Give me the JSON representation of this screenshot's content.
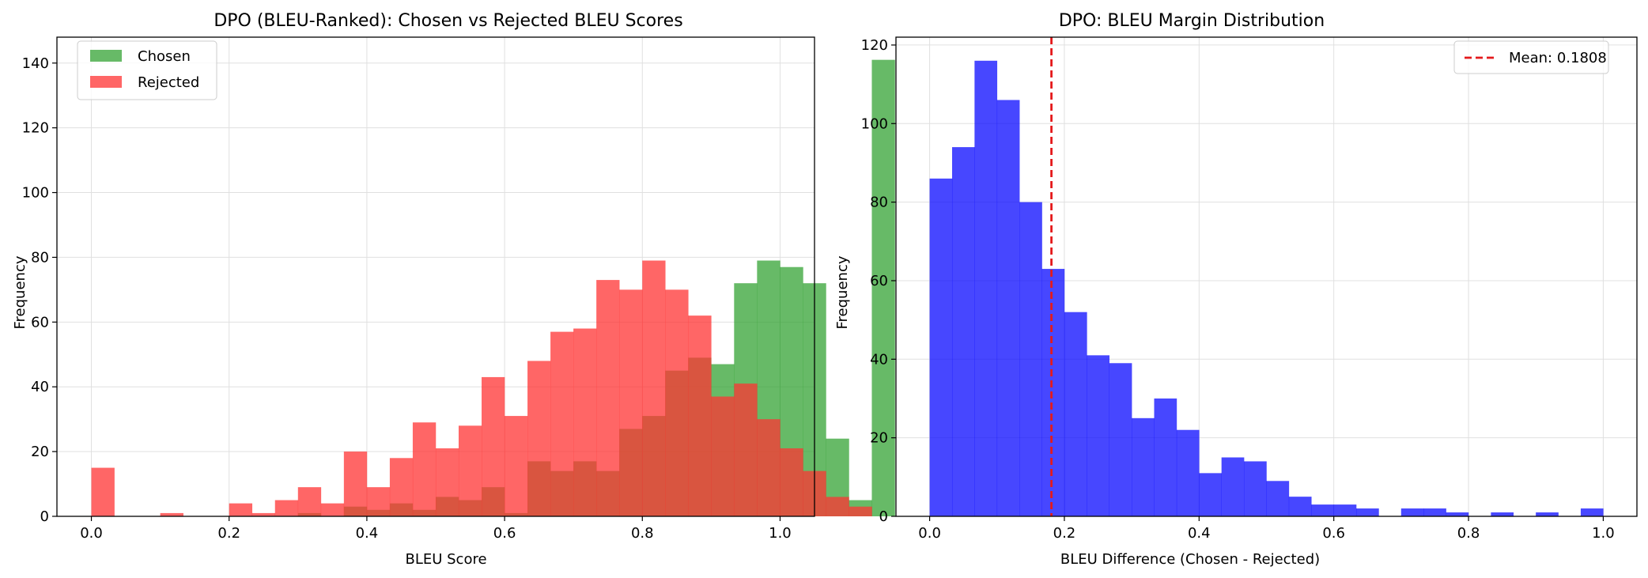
{
  "chart_data": [
    {
      "type": "bar",
      "title": "DPO (BLEU-Ranked): Chosen vs Rejected BLEU Scores",
      "xlabel": "BLEU Score",
      "ylabel": "Frequency",
      "xlim": [
        -0.05,
        1.05
      ],
      "ylim": [
        0,
        148
      ],
      "xticks": [
        0.0,
        0.2,
        0.4,
        0.6,
        0.8,
        1.0
      ],
      "xtick_labels": [
        "0.0",
        "0.2",
        "0.4",
        "0.6",
        "0.8",
        "1.0"
      ],
      "yticks": [
        0,
        20,
        40,
        60,
        80,
        100,
        120,
        140
      ],
      "ytick_labels": [
        "0",
        "20",
        "40",
        "60",
        "80",
        "100",
        "120",
        "140"
      ],
      "grid": true,
      "legend": "top-left",
      "bin_edges_start": 0.0,
      "bin_width": 0.03333,
      "series": [
        {
          "name": "Chosen",
          "color": "#2ca02c",
          "opacity": 0.72,
          "values": [
            0,
            0,
            0,
            0,
            0,
            0,
            0,
            0,
            0,
            1,
            0,
            3,
            2,
            4,
            2,
            6,
            5,
            9,
            1,
            17,
            14,
            17,
            14,
            27,
            31,
            45,
            49,
            47,
            72,
            79,
            77,
            72,
            24,
            5,
            141
          ]
        },
        {
          "name": "Rejected",
          "color": "#ff3333",
          "opacity": 0.75,
          "values": [
            15,
            0,
            0,
            1,
            0,
            0,
            4,
            1,
            5,
            9,
            4,
            20,
            9,
            18,
            29,
            21,
            28,
            43,
            31,
            48,
            57,
            58,
            73,
            70,
            79,
            70,
            62,
            37,
            41,
            30,
            21,
            14,
            6,
            3,
            0
          ]
        }
      ]
    },
    {
      "type": "bar",
      "title": "DPO: BLEU Margin Distribution",
      "xlabel": "BLEU Difference (Chosen - Rejected)",
      "ylabel": "Frequency",
      "xlim": [
        -0.05,
        1.05
      ],
      "ylim": [
        0,
        122
      ],
      "xticks": [
        0.0,
        0.2,
        0.4,
        0.6,
        0.8,
        1.0
      ],
      "xtick_labels": [
        "0.0",
        "0.2",
        "0.4",
        "0.6",
        "0.8",
        "1.0"
      ],
      "yticks": [
        0,
        20,
        40,
        60,
        80,
        100,
        120
      ],
      "ytick_labels": [
        "0",
        "20",
        "40",
        "60",
        "80",
        "100",
        "120"
      ],
      "grid": true,
      "legend": "top-right",
      "bin_edges_start": 0.0,
      "bin_width": 0.03333,
      "series": [
        {
          "color": "#0000ff",
          "opacity": 0.72,
          "values": [
            86,
            94,
            116,
            106,
            80,
            63,
            52,
            41,
            39,
            25,
            30,
            22,
            11,
            15,
            14,
            9,
            5,
            3,
            3,
            2,
            0,
            2,
            2,
            1,
            0,
            1,
            0,
            1,
            0,
            2
          ]
        }
      ],
      "mean_line": {
        "label": "Mean: 0.1808",
        "value": 0.1808,
        "color": "#e41a1c"
      }
    }
  ]
}
